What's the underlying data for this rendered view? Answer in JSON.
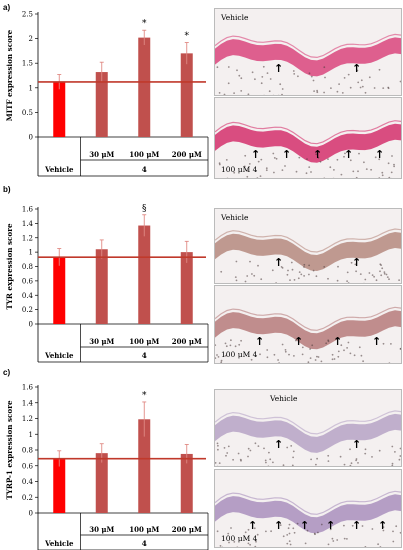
{
  "panels": [
    {
      "label": "a)",
      "micro_top": "Vehicle",
      "micro_bottom": "100 μM 4",
      "tissue_color_top": "#d9457c",
      "tissue_color_bottom": "#d3306c",
      "arrows_top": 2,
      "arrows_bottom": 5
    },
    {
      "label": "b)",
      "micro_top": "Vehicle",
      "micro_bottom": "100 μM 4",
      "tissue_color_top": "#b5897f",
      "tissue_color_bottom": "#b67b7b",
      "arrows_top": 2,
      "arrows_bottom": 4
    },
    {
      "label": "c)",
      "micro_top": "Vehicle",
      "micro_bottom": "100 μM 4",
      "tissue_color_top": "#b6a3c6",
      "tissue_color_bottom": "#a98fbd",
      "arrows_top": 2,
      "arrows_bottom": 6
    }
  ],
  "chart_data": [
    {
      "type": "bar",
      "ylabel": "MITF expression score",
      "categories": [
        "Vehicle",
        "30 μM",
        "100 μM",
        "200 μM"
      ],
      "group_label": "4",
      "values": [
        1.12,
        1.32,
        2.02,
        1.7
      ],
      "errors": [
        0.15,
        0.2,
        0.15,
        0.22
      ],
      "annotations": [
        "",
        "",
        "*",
        "*"
      ],
      "reference_line": 1.12,
      "ylim": [
        0,
        2.5
      ],
      "yticks": [
        "0",
        "0.5",
        "1",
        "1.5",
        "2",
        "2.5"
      ],
      "bar_colors": [
        "#ff0000",
        "#c0504d",
        "#c0504d",
        "#c0504d"
      ]
    },
    {
      "type": "bar",
      "ylabel": "TYR expression score",
      "categories": [
        "Vehicle",
        "30 μM",
        "100 μM",
        "200 μM"
      ],
      "group_label": "4",
      "values": [
        0.93,
        1.04,
        1.37,
        1.0
      ],
      "errors": [
        0.12,
        0.13,
        0.15,
        0.15
      ],
      "annotations": [
        "",
        "",
        "§",
        ""
      ],
      "reference_line": 0.93,
      "ylim": [
        0,
        1.6
      ],
      "yticks": [
        "0",
        "0.2",
        "0.4",
        "0.6",
        "0.8",
        "1",
        "1.2",
        "1.4",
        "1.6"
      ],
      "bar_colors": [
        "#ff0000",
        "#c0504d",
        "#c0504d",
        "#c0504d"
      ]
    },
    {
      "type": "bar",
      "ylabel": "TYRP-1 expression score",
      "categories": [
        "Vehicle",
        "30 μM",
        "100 μM",
        "200 μM"
      ],
      "group_label": "4",
      "values": [
        0.69,
        0.76,
        1.19,
        0.75
      ],
      "errors": [
        0.1,
        0.12,
        0.22,
        0.12
      ],
      "annotations": [
        "",
        "",
        "*",
        ""
      ],
      "reference_line": 0.69,
      "ylim": [
        0,
        1.6
      ],
      "yticks": [
        "0",
        "0.2",
        "0.4",
        "0.6",
        "0.8",
        "1",
        "1.2",
        "1.4",
        "1.6"
      ],
      "bar_colors": [
        "#ff0000",
        "#c0504d",
        "#c0504d",
        "#c0504d"
      ]
    }
  ]
}
